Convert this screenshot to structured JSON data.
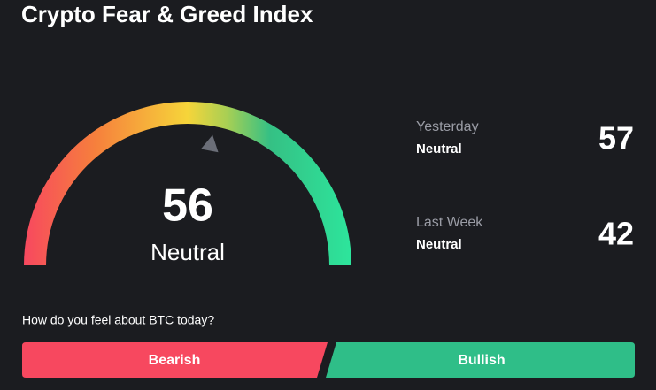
{
  "header": {
    "title": "Crypto Fear & Greed Index"
  },
  "gauge": {
    "value": 56,
    "label": "Neutral",
    "min": 0,
    "max": 100
  },
  "history": [
    {
      "period": "Yesterday",
      "label": "Neutral",
      "value": 57
    },
    {
      "period": "Last Week",
      "label": "Neutral",
      "value": 42
    }
  ],
  "prompt": {
    "question": "How do you feel about BTC today?",
    "buttons": [
      "Bearish",
      "Bullish"
    ]
  }
}
